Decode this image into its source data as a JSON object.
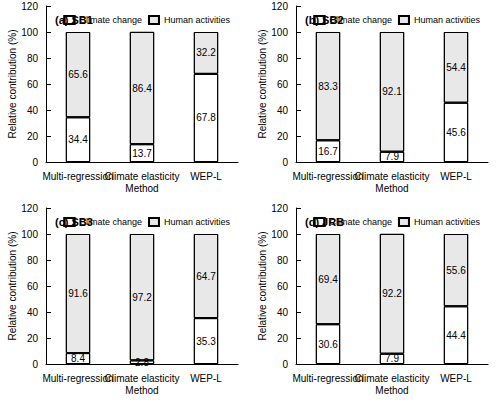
{
  "chart_data": [
    {
      "type": "bar",
      "title": "(a) SB1",
      "ylabel": "Relative contribution (%)",
      "categories": [
        "Multi-regression",
        "Climate elasticity\nMethod",
        "WEP-L"
      ],
      "series": [
        {
          "name": "Climate change",
          "color": "#ffffff",
          "values": [
            34.4,
            13.7,
            67.8
          ]
        },
        {
          "name": "Human activities",
          "color": "#e8e8e8",
          "values": [
            65.6,
            86.4,
            32.2
          ]
        }
      ],
      "ylim": [
        0,
        120
      ],
      "yticks": [
        0,
        20,
        40,
        60,
        80,
        100,
        120
      ],
      "stacked": true,
      "data_labels": true,
      "legend": "upper right",
      "grid": false
    },
    {
      "type": "bar",
      "title": "(b) SB2",
      "ylabel": "Relative contribution (%)",
      "categories": [
        "Multi-regression",
        "Climate elasticity\nMethod",
        "WEP-L"
      ],
      "series": [
        {
          "name": "Climate change",
          "color": "#ffffff",
          "values": [
            16.7,
            7.9,
            45.6
          ]
        },
        {
          "name": "Human activities",
          "color": "#e8e8e8",
          "values": [
            83.3,
            92.1,
            54.4
          ]
        }
      ],
      "ylim": [
        0,
        120
      ],
      "yticks": [
        0,
        20,
        40,
        60,
        80,
        100,
        120
      ],
      "stacked": true,
      "data_labels": true,
      "legend": "upper right",
      "grid": false
    },
    {
      "type": "bar",
      "title": "(c) SB3",
      "ylabel": "Relative contribution (%)",
      "categories": [
        "Multi-regression",
        "Climate elasticity\nMethod",
        "WEP-L"
      ],
      "series": [
        {
          "name": "Climate change",
          "color": "#ffffff",
          "values": [
            8.4,
            2.8,
            35.3
          ]
        },
        {
          "name": "Human activities",
          "color": "#e8e8e8",
          "values": [
            91.6,
            97.2,
            64.7
          ]
        }
      ],
      "ylim": [
        0,
        120
      ],
      "yticks": [
        0,
        20,
        40,
        60,
        80,
        100,
        120
      ],
      "stacked": true,
      "data_labels": true,
      "legend": "upper right",
      "grid": false
    },
    {
      "type": "bar",
      "title": "(d) JRB",
      "ylabel": "Relative contribution (%)",
      "categories": [
        "Multi-regression",
        "Climate elasticity\nMethod",
        "WEP-L"
      ],
      "series": [
        {
          "name": "Climate change",
          "color": "#ffffff",
          "values": [
            30.6,
            7.9,
            44.4
          ]
        },
        {
          "name": "Human activities",
          "color": "#e8e8e8",
          "values": [
            69.4,
            92.2,
            55.6
          ]
        }
      ],
      "ylim": [
        0,
        120
      ],
      "yticks": [
        0,
        20,
        40,
        60,
        80,
        100,
        120
      ],
      "stacked": true,
      "data_labels": true,
      "legend": "upper right",
      "grid": false
    }
  ]
}
